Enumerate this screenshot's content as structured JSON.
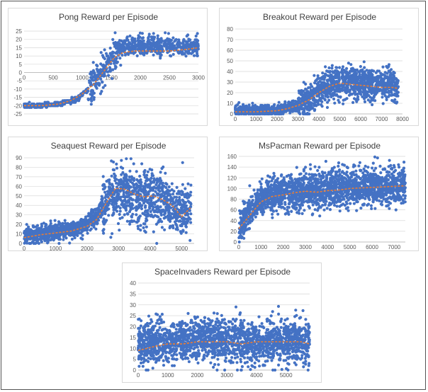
{
  "colors": {
    "points": "#4472c4",
    "trend": "#ed7d31",
    "grid": "#d9d9d9",
    "axis": "#bfbfbf"
  },
  "chart_data": [
    {
      "type": "scatter",
      "title": "Pong Reward per Episode",
      "xlabel": "",
      "ylabel": "",
      "xlim": [
        0,
        3000
      ],
      "ylim": [
        -25,
        25
      ],
      "x_ticks": [
        0,
        500,
        1000,
        1500,
        2000,
        2500,
        3000
      ],
      "y_ticks": [
        -25,
        -20,
        -15,
        -10,
        -5,
        0,
        5,
        10,
        15,
        20,
        25
      ],
      "x_axis_at_y": 0,
      "grid": true,
      "series": [
        {
          "kind": "points",
          "x": [
            0,
            300,
            600,
            900,
            1100,
            1300,
            1450,
            1600,
            1750,
            1900,
            2200,
            2500,
            2800,
            3000
          ],
          "y": [
            -20,
            -20,
            -19,
            -16,
            -10,
            -3,
            6,
            13,
            16,
            16,
            16,
            16,
            16,
            17
          ]
        },
        {
          "kind": "trend",
          "x": [
            0,
            300,
            600,
            800,
            1000,
            1200,
            1400,
            1550,
            1700,
            1900,
            2200,
            2500,
            2800,
            3000
          ],
          "y": [
            -20,
            -20,
            -19,
            -17,
            -13,
            -7,
            2,
            9,
            12,
            13,
            13,
            13,
            14,
            15
          ]
        }
      ]
    },
    {
      "type": "scatter",
      "title": "Breakout Reward per Episode",
      "xlabel": "",
      "ylabel": "",
      "xlim": [
        0,
        8000
      ],
      "ylim": [
        0,
        80
      ],
      "x_ticks": [
        0,
        1000,
        2000,
        3000,
        4000,
        5000,
        6000,
        7000,
        8000
      ],
      "y_ticks": [
        0,
        10,
        20,
        30,
        40,
        50,
        60,
        70,
        80
      ],
      "grid": true,
      "series": [
        {
          "kind": "points",
          "x": [
            0,
            1000,
            2000,
            2500,
            3000,
            3500,
            4000,
            4500,
            5000,
            5500,
            6000,
            6500,
            7000,
            7500,
            7800
          ],
          "y": [
            3,
            3,
            4,
            6,
            9,
            14,
            21,
            28,
            30,
            30,
            29,
            28,
            28,
            27,
            26
          ]
        },
        {
          "kind": "trend",
          "x": [
            0,
            1000,
            2000,
            2500,
            3000,
            3500,
            4000,
            4500,
            5000,
            5500,
            6000,
            6500,
            7000,
            7500,
            7800
          ],
          "y": [
            2,
            2,
            3,
            5,
            8,
            13,
            20,
            26,
            29,
            28,
            27,
            26,
            25,
            25,
            24
          ]
        }
      ]
    },
    {
      "type": "scatter",
      "title": "Seaquest Reward per Episode",
      "xlabel": "",
      "ylabel": "",
      "xlim": [
        0,
        5400
      ],
      "ylim": [
        0,
        90
      ],
      "x_ticks": [
        0,
        1000,
        2000,
        3000,
        4000,
        5000
      ],
      "y_ticks": [
        0,
        10,
        20,
        30,
        40,
        50,
        60,
        70,
        80,
        90
      ],
      "grid": true,
      "series": [
        {
          "kind": "points",
          "x": [
            0,
            500,
            1000,
            1500,
            2000,
            2300,
            2600,
            2900,
            3200,
            3500,
            3800,
            4100,
            4400,
            4700,
            5000,
            5300
          ],
          "y": [
            7,
            10,
            12,
            15,
            20,
            28,
            45,
            55,
            55,
            50,
            48,
            48,
            45,
            40,
            32,
            38
          ]
        },
        {
          "kind": "trend",
          "x": [
            0,
            500,
            1000,
            1500,
            2000,
            2300,
            2600,
            2900,
            3200,
            3500,
            3800,
            4100,
            4400,
            4700,
            5000,
            5300
          ],
          "y": [
            6,
            9,
            11,
            13,
            18,
            25,
            42,
            58,
            57,
            52,
            49,
            50,
            46,
            40,
            28,
            38
          ]
        }
      ]
    },
    {
      "type": "scatter",
      "title": "MsPacman Reward per Episode",
      "xlabel": "",
      "ylabel": "",
      "xlim": [
        0,
        7500
      ],
      "ylim": [
        0,
        160
      ],
      "x_ticks": [
        0,
        1000,
        2000,
        3000,
        4000,
        5000,
        6000,
        7000
      ],
      "y_ticks": [
        0,
        20,
        40,
        60,
        80,
        100,
        120,
        140,
        160
      ],
      "grid": true,
      "series": [
        {
          "kind": "points",
          "x": [
            0,
            300,
            700,
            1000,
            1500,
            2000,
            2500,
            3000,
            3500,
            4000,
            4500,
            5000,
            5500,
            6000,
            6500,
            7000,
            7500
          ],
          "y": [
            25,
            45,
            65,
            80,
            88,
            92,
            95,
            97,
            98,
            100,
            100,
            102,
            103,
            103,
            104,
            104,
            105
          ]
        },
        {
          "kind": "trend",
          "x": [
            0,
            300,
            700,
            1000,
            1500,
            2000,
            2500,
            3000,
            3500,
            4000,
            4500,
            5000,
            5500,
            6000,
            6500,
            7000,
            7500
          ],
          "y": [
            25,
            40,
            60,
            75,
            85,
            88,
            92,
            95,
            93,
            96,
            97,
            100,
            101,
            102,
            103,
            104,
            105
          ]
        }
      ]
    },
    {
      "type": "scatter",
      "title": "SpaceInvaders Reward per Episode",
      "xlabel": "",
      "ylabel": "",
      "xlim": [
        0,
        5800
      ],
      "ylim": [
        0,
        40
      ],
      "x_ticks": [
        0,
        1000,
        2000,
        3000,
        4000,
        5000
      ],
      "y_ticks": [
        0,
        5,
        10,
        15,
        20,
        25,
        30,
        35,
        40
      ],
      "grid": true,
      "series": [
        {
          "kind": "points",
          "x": [
            0,
            500,
            1000,
            1500,
            2000,
            2500,
            3000,
            3500,
            4000,
            4500,
            5000,
            5500,
            5800
          ],
          "y": [
            12,
            12,
            13,
            13,
            14,
            14,
            13,
            13,
            13,
            13,
            13,
            13,
            12
          ]
        },
        {
          "kind": "trend",
          "x": [
            0,
            300,
            600,
            1000,
            1500,
            2000,
            2500,
            3000,
            3500,
            4000,
            4500,
            5000,
            5500,
            5800
          ],
          "y": [
            9,
            10,
            11,
            12,
            12,
            13,
            13,
            13,
            12,
            13,
            13,
            13,
            13,
            12
          ]
        }
      ]
    }
  ]
}
